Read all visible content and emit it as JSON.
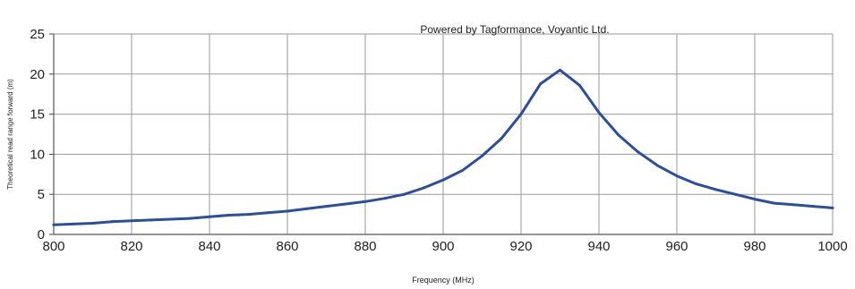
{
  "chart_data": {
    "type": "line",
    "annotation": "Powered by Tagformance, Voyantic Ltd.",
    "xlabel": "Frequency (MHz)",
    "ylabel": "Theoretical read range forward (m)",
    "xlim": [
      800,
      1000
    ],
    "ylim": [
      0,
      25
    ],
    "xticks": [
      800,
      820,
      840,
      860,
      880,
      900,
      920,
      940,
      960,
      980,
      1000
    ],
    "yticks": [
      0,
      5,
      10,
      15,
      20,
      25
    ],
    "grid": true,
    "line_color": "#2f4f93",
    "series": [
      {
        "x": [
          800,
          805,
          810,
          815,
          820,
          825,
          830,
          835,
          840,
          845,
          850,
          855,
          860,
          865,
          870,
          875,
          880,
          885,
          890,
          895,
          900,
          905,
          910,
          915,
          920,
          925,
          930,
          935,
          940,
          945,
          950,
          955,
          960,
          965,
          970,
          975,
          980,
          985,
          990,
          995,
          1000
        ],
        "y": [
          1.2,
          1.3,
          1.4,
          1.6,
          1.7,
          1.8,
          1.9,
          2.0,
          2.2,
          2.4,
          2.5,
          2.7,
          2.9,
          3.2,
          3.5,
          3.8,
          4.1,
          4.5,
          5.0,
          5.8,
          6.8,
          8.0,
          9.8,
          12.0,
          15.0,
          18.8,
          20.5,
          18.6,
          15.2,
          12.4,
          10.3,
          8.6,
          7.3,
          6.3,
          5.6,
          5.0,
          4.4,
          3.9,
          3.7,
          3.5,
          3.3
        ]
      }
    ]
  }
}
